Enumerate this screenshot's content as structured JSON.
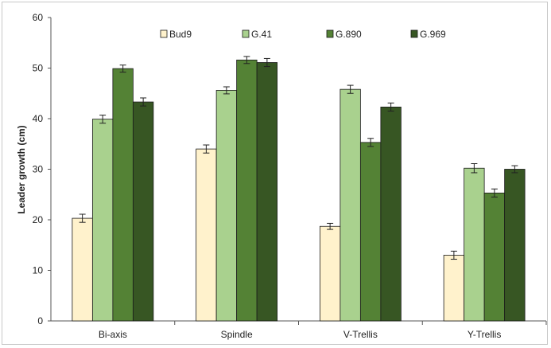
{
  "chart_data": {
    "type": "bar",
    "title": "",
    "xlabel": "",
    "ylabel": "Leader growth (cm)",
    "ylim": [
      0,
      60
    ],
    "yticks": [
      "0",
      "10",
      "20",
      "30",
      "40",
      "50",
      "60"
    ],
    "categories": [
      "Bi-axis",
      "Spindle",
      "V-Trellis",
      "Y-Trellis"
    ],
    "grid": false,
    "legend_position": "top",
    "series": [
      {
        "name": "Bud9",
        "color": "#fff2cc",
        "values": [
          20.3,
          34.0,
          18.7,
          13.0
        ],
        "errors": [
          0.8,
          0.8,
          0.6,
          0.8
        ]
      },
      {
        "name": "G.41",
        "color": "#a9d18e",
        "values": [
          39.9,
          45.6,
          45.8,
          30.2
        ],
        "errors": [
          0.8,
          0.7,
          0.8,
          0.9
        ]
      },
      {
        "name": "G.890",
        "color": "#548235",
        "values": [
          49.9,
          51.6,
          35.3,
          25.3
        ],
        "errors": [
          0.7,
          0.7,
          0.8,
          0.8
        ]
      },
      {
        "name": "G.969",
        "color": "#375623",
        "values": [
          43.3,
          51.1,
          42.3,
          30.0
        ],
        "errors": [
          0.8,
          0.8,
          0.8,
          0.7
        ]
      }
    ]
  }
}
